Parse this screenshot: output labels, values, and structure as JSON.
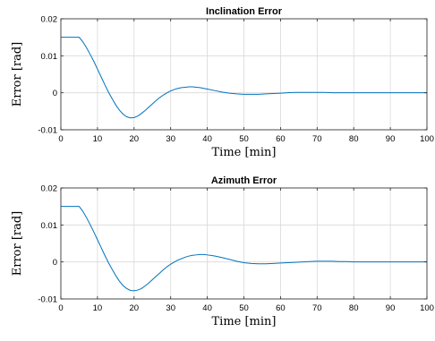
{
  "chart_data": [
    {
      "type": "line",
      "title": "Inclination Error",
      "xlabel": "Time [min]",
      "ylabel": "Error [rad]",
      "xlim": [
        0,
        100
      ],
      "ylim": [
        -0.01,
        0.02
      ],
      "xticks": [
        "0",
        "10",
        "20",
        "30",
        "40",
        "50",
        "60",
        "70",
        "80",
        "90",
        "100"
      ],
      "yticks": [
        "-0.01",
        "0",
        "0.01",
        "0.02"
      ],
      "grid": true,
      "color": "#0072BD",
      "series": [
        {
          "x": [
            0,
            5,
            6,
            7,
            8,
            9,
            10,
            11,
            12,
            13,
            14,
            15,
            16,
            17,
            18,
            19,
            20,
            21,
            22,
            23,
            24,
            25,
            26,
            27,
            28,
            29,
            30,
            31,
            32,
            33,
            34,
            35,
            36,
            37,
            38,
            39,
            40,
            42,
            44,
            46,
            48,
            50,
            52,
            54,
            56,
            58,
            60,
            62,
            64,
            66,
            68,
            70,
            72,
            74,
            76,
            78,
            80,
            85,
            90,
            95,
            100
          ],
          "y": [
            0.015,
            0.015,
            0.0138,
            0.0122,
            0.0104,
            0.0085,
            0.0064,
            0.0043,
            0.0022,
            0.0002,
            -0.0016,
            -0.0033,
            -0.0047,
            -0.0058,
            -0.0065,
            -0.0068,
            -0.0067,
            -0.0063,
            -0.0056,
            -0.0048,
            -0.0039,
            -0.003,
            -0.0021,
            -0.0013,
            -0.0006,
            0.0,
            0.0005,
            0.0009,
            0.0012,
            0.0014,
            0.0015,
            0.0016,
            0.0016,
            0.0015,
            0.0014,
            0.0012,
            0.001,
            0.0006,
            0.0002,
            -0.0001,
            -0.0003,
            -0.0004,
            -0.0004,
            -0.0004,
            -0.0003,
            -0.0002,
            -0.0001,
            0.0,
            0.0001,
            0.0001,
            0.0001,
            0.0001,
            0.0001,
            0.0,
            0.0,
            0.0,
            0.0,
            0.0,
            0.0,
            0.0,
            0.0
          ]
        }
      ]
    },
    {
      "type": "line",
      "title": "Azimuth Error",
      "xlabel": "Time [min]",
      "ylabel": "Error [rad]",
      "xlim": [
        0,
        100
      ],
      "ylim": [
        -0.01,
        0.02
      ],
      "xticks": [
        "0",
        "10",
        "20",
        "30",
        "40",
        "50",
        "60",
        "70",
        "80",
        "90",
        "100"
      ],
      "yticks": [
        "-0.01",
        "0",
        "0.01",
        "0.02"
      ],
      "grid": true,
      "color": "#0072BD",
      "series": [
        {
          "x": [
            0,
            5,
            6,
            7,
            8,
            9,
            10,
            11,
            12,
            13,
            14,
            15,
            16,
            17,
            18,
            19,
            20,
            21,
            22,
            23,
            24,
            25,
            26,
            27,
            28,
            29,
            30,
            31,
            32,
            33,
            34,
            35,
            36,
            37,
            38,
            39,
            40,
            42,
            44,
            46,
            48,
            50,
            52,
            54,
            56,
            58,
            60,
            62,
            64,
            66,
            68,
            70,
            72,
            74,
            76,
            78,
            80,
            85,
            90,
            95,
            100
          ],
          "y": [
            0.015,
            0.015,
            0.0137,
            0.012,
            0.0101,
            0.0081,
            0.006,
            0.0039,
            0.0018,
            -0.0002,
            -0.002,
            -0.0037,
            -0.0052,
            -0.0064,
            -0.0072,
            -0.0077,
            -0.0078,
            -0.0076,
            -0.0072,
            -0.0065,
            -0.0057,
            -0.0048,
            -0.0039,
            -0.003,
            -0.0021,
            -0.0013,
            -0.0006,
            0.0,
            0.0005,
            0.0009,
            0.0013,
            0.0016,
            0.0018,
            0.0019,
            0.002,
            0.002,
            0.0019,
            0.0016,
            0.0012,
            0.0007,
            0.0002,
            -0.0002,
            -0.0004,
            -0.0005,
            -0.0005,
            -0.0004,
            -0.0003,
            -0.0002,
            -0.0001,
            0.0,
            0.0001,
            0.0002,
            0.0002,
            0.0002,
            0.0001,
            0.0001,
            0.0,
            0.0,
            0.0,
            0.0,
            0.0
          ]
        }
      ]
    }
  ]
}
